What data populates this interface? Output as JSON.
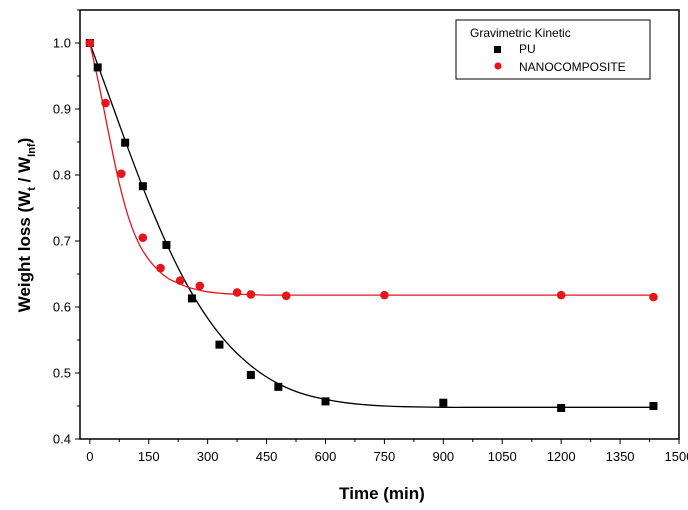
{
  "chart_data": {
    "type": "scatter",
    "title": "",
    "xlabel": "Time (min)",
    "ylabel": "Weight loss (W",
    "ylabel_sub1": "t",
    "ylabel_mid": " / W",
    "ylabel_sub2": "Inf",
    "ylabel_end": ")",
    "xlim": [
      -25,
      1500
    ],
    "ylim": [
      0.4,
      1.05
    ],
    "xticks": [
      0,
      150,
      300,
      450,
      600,
      750,
      900,
      1050,
      1200,
      1350,
      1500
    ],
    "yticks": [
      0.4,
      0.5,
      0.6,
      0.7,
      0.8,
      0.9,
      1.0
    ],
    "ytick_labels": [
      "0.4",
      "0.5",
      "0.6",
      "0.7",
      "0.8",
      "0.9",
      "1.0"
    ],
    "grid": false,
    "legend": {
      "title": "Gravimetric Kinetic",
      "placement": "top-right"
    },
    "series": [
      {
        "name": "PU",
        "marker": "square",
        "color": "#000000",
        "x": [
          0,
          20,
          90,
          135,
          195,
          260,
          330,
          410,
          480,
          600,
          900,
          1200,
          1435
        ],
        "y": [
          1.0,
          0.963,
          0.849,
          0.783,
          0.694,
          0.613,
          0.543,
          0.497,
          0.479,
          0.457,
          0.455,
          0.447,
          0.45
        ],
        "fit_x": [
          0,
          50,
          100,
          150,
          200,
          250,
          300,
          350,
          400,
          450,
          500,
          550,
          600,
          650,
          700,
          750,
          800,
          900,
          1000,
          1100,
          1200,
          1300,
          1435
        ],
        "fit_y": [
          1.0,
          0.918,
          0.836,
          0.759,
          0.69,
          0.631,
          0.583,
          0.545,
          0.516,
          0.494,
          0.478,
          0.467,
          0.46,
          0.455,
          0.452,
          0.45,
          0.449,
          0.448,
          0.448,
          0.448,
          0.448,
          0.448,
          0.448
        ]
      },
      {
        "name": "NANOCOMPOSITE",
        "marker": "circle",
        "color": "#e8141c",
        "x": [
          0,
          40,
          80,
          135,
          180,
          230,
          280,
          375,
          410,
          500,
          750,
          1200,
          1435
        ],
        "y": [
          1.0,
          0.909,
          0.802,
          0.705,
          0.659,
          0.64,
          0.632,
          0.622,
          0.619,
          0.617,
          0.618,
          0.618,
          0.615
        ],
        "fit_x": [
          0,
          25,
          50,
          75,
          100,
          125,
          150,
          175,
          200,
          225,
          250,
          275,
          300,
          350,
          400,
          450,
          500,
          600,
          750,
          900,
          1200,
          1435
        ],
        "fit_y": [
          1.0,
          0.932,
          0.857,
          0.787,
          0.733,
          0.696,
          0.672,
          0.655,
          0.643,
          0.636,
          0.63,
          0.626,
          0.623,
          0.62,
          0.619,
          0.618,
          0.618,
          0.618,
          0.618,
          0.618,
          0.618,
          0.618
        ]
      }
    ]
  }
}
